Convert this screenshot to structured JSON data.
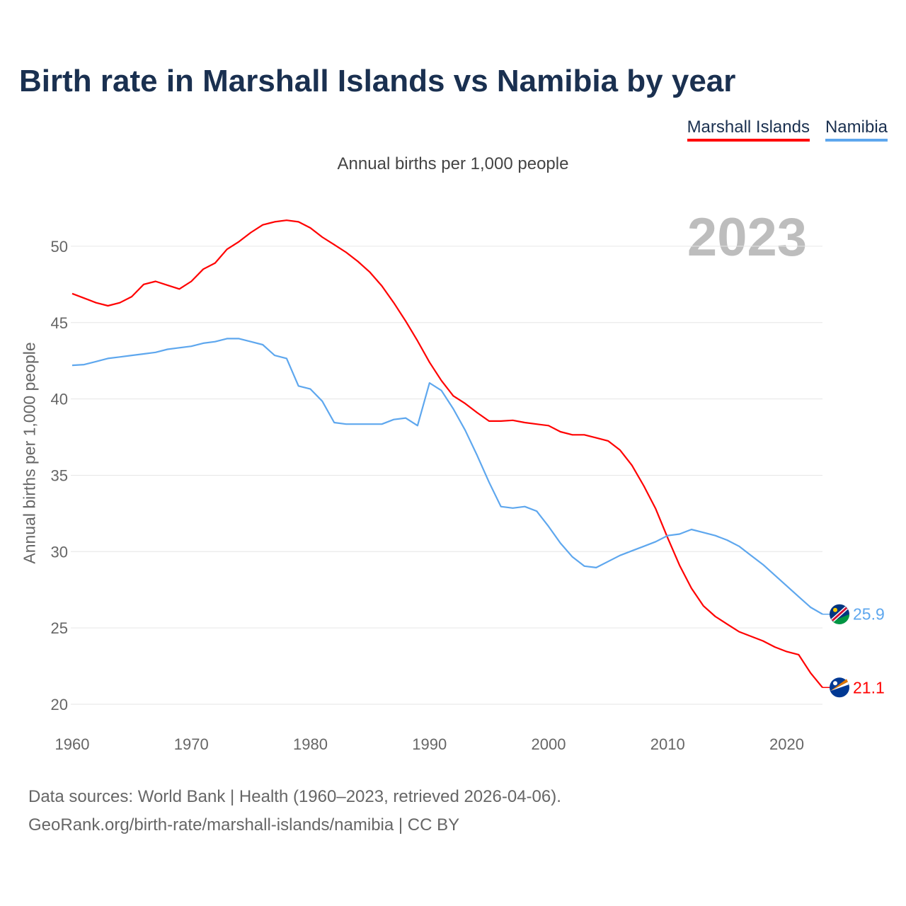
{
  "chart_data": {
    "type": "line",
    "title": "Birth rate in Marshall Islands vs Namibia by year",
    "subtitle": "Annual births per 1,000 people",
    "ylabel": "Annual births per 1,000 people",
    "xlabel": "",
    "year_label": "2023",
    "xlim": [
      1960,
      2023
    ],
    "ylim": [
      20,
      52
    ],
    "x_ticks": [
      1960,
      1970,
      1980,
      1990,
      2000,
      2010,
      2020
    ],
    "y_ticks": [
      20,
      25,
      30,
      35,
      40,
      45,
      50
    ],
    "grid": true,
    "legend_position": "top-right",
    "x": [
      1960,
      1961,
      1962,
      1963,
      1964,
      1965,
      1966,
      1967,
      1968,
      1969,
      1970,
      1971,
      1972,
      1973,
      1974,
      1975,
      1976,
      1977,
      1978,
      1979,
      1980,
      1981,
      1982,
      1983,
      1984,
      1985,
      1986,
      1987,
      1988,
      1989,
      1990,
      1991,
      1992,
      1993,
      1994,
      1995,
      1996,
      1997,
      1998,
      1999,
      2000,
      2001,
      2002,
      2003,
      2004,
      2005,
      2006,
      2007,
      2008,
      2009,
      2010,
      2011,
      2012,
      2013,
      2014,
      2015,
      2016,
      2017,
      2018,
      2019,
      2020,
      2021,
      2022,
      2023
    ],
    "series": [
      {
        "name": "Marshall Islands",
        "color": "#ff0000",
        "end_label": "21.1",
        "values": [
          46.9,
          46.6,
          46.3,
          46.1,
          46.3,
          46.7,
          47.5,
          47.7,
          47.45,
          47.2,
          47.7,
          48.5,
          48.9,
          49.8,
          50.3,
          50.9,
          51.4,
          51.6,
          51.7,
          51.6,
          51.2,
          50.6,
          50.1,
          49.6,
          49.0,
          48.3,
          47.4,
          46.3,
          45.1,
          43.8,
          42.4,
          41.2,
          40.2,
          39.7,
          39.1,
          38.55,
          38.55,
          38.6,
          38.45,
          38.35,
          38.25,
          37.85,
          37.65,
          37.65,
          37.45,
          37.25,
          36.65,
          35.65,
          34.3,
          32.8,
          30.9,
          29.1,
          27.6,
          26.45,
          25.75,
          25.25,
          24.75,
          24.45,
          24.15,
          23.75,
          23.45,
          23.25,
          22.05,
          21.1
        ]
      },
      {
        "name": "Namibia",
        "color": "#5ea7ee",
        "end_label": "25.9",
        "values": [
          42.2,
          42.25,
          42.45,
          42.65,
          42.75,
          42.85,
          42.95,
          43.05,
          43.25,
          43.35,
          43.45,
          43.65,
          43.75,
          43.95,
          43.95,
          43.75,
          43.55,
          42.85,
          42.65,
          40.85,
          40.65,
          39.85,
          38.45,
          38.35,
          38.35,
          38.35,
          38.35,
          38.65,
          38.75,
          38.25,
          41.05,
          40.55,
          39.35,
          37.95,
          36.3,
          34.55,
          32.95,
          32.85,
          32.95,
          32.65,
          31.65,
          30.55,
          29.65,
          29.05,
          28.95,
          29.35,
          29.75,
          30.05,
          30.35,
          30.65,
          31.05,
          31.15,
          31.45,
          31.25,
          31.05,
          30.75,
          30.35,
          29.75,
          29.15,
          28.45,
          27.75,
          27.05,
          26.35,
          25.9
        ]
      }
    ]
  },
  "footer": {
    "line1": "Data sources: World Bank | Health (1960–2023, retrieved 2026-04-06).",
    "line2": "GeoRank.org/birth-rate/marshall-islands/namibia | CC BY"
  }
}
